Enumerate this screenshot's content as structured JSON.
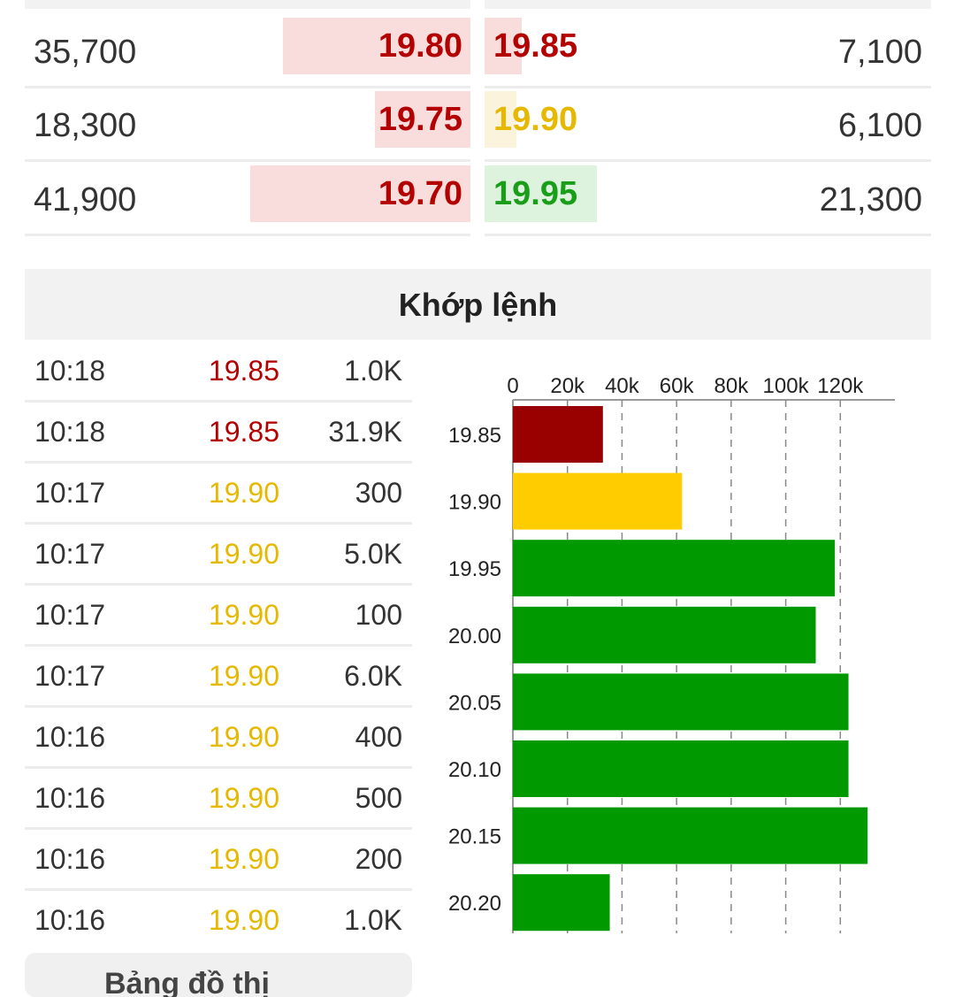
{
  "order_book": {
    "rows": [
      {
        "bid_vol": "35,700",
        "bid_price": "19.80",
        "bid_color": "#b30000",
        "bid_bg": "#f9dddd",
        "bid_share": 0.42,
        "ask_price": "19.85",
        "ask_color": "#b30000",
        "ask_bg": "#f9dddd",
        "ask_share": 0.084,
        "ask_vol": "7,100"
      },
      {
        "bid_vol": "18,300",
        "bid_price": "19.75",
        "bid_color": "#b30000",
        "bid_bg": "#f9dddd",
        "bid_share": 0.215,
        "ask_price": "19.90",
        "ask_color": "#e6b800",
        "ask_bg": "#fbf3dc",
        "ask_share": 0.072,
        "ask_vol": "6,100"
      },
      {
        "bid_vol": "41,900",
        "bid_price": "19.70",
        "bid_color": "#b30000",
        "bid_bg": "#f9dddd",
        "bid_share": 0.494,
        "ask_price": "19.95",
        "ask_color": "#1a9e1a",
        "ask_bg": "#ddf3dd",
        "ask_share": 0.251,
        "ask_vol": "21,300"
      }
    ]
  },
  "section_title": "Khớp lệnh",
  "trades": [
    {
      "time": "10:18",
      "price": "19.85",
      "volume": "1.0K",
      "color": "#b30000"
    },
    {
      "time": "10:18",
      "price": "19.85",
      "volume": "31.9K",
      "color": "#b30000"
    },
    {
      "time": "10:17",
      "price": "19.90",
      "volume": "300",
      "color": "#e6b800"
    },
    {
      "time": "10:17",
      "price": "19.90",
      "volume": "5.0K",
      "color": "#e6b800"
    },
    {
      "time": "10:17",
      "price": "19.90",
      "volume": "100",
      "color": "#e6b800"
    },
    {
      "time": "10:17",
      "price": "19.90",
      "volume": "6.0K",
      "color": "#e6b800"
    },
    {
      "time": "10:16",
      "price": "19.90",
      "volume": "400",
      "color": "#e6b800"
    },
    {
      "time": "10:16",
      "price": "19.90",
      "volume": "500",
      "color": "#e6b800"
    },
    {
      "time": "10:16",
      "price": "19.90",
      "volume": "200",
      "color": "#e6b800"
    },
    {
      "time": "10:16",
      "price": "19.90",
      "volume": "1.0K",
      "color": "#e6b800"
    }
  ],
  "chart_data": {
    "type": "bar",
    "orientation": "horizontal",
    "categories": [
      "19.85",
      "19.90",
      "19.95",
      "20.00",
      "20.05",
      "20.10",
      "20.15",
      "20.20"
    ],
    "values": [
      33000,
      62000,
      118000,
      111000,
      123000,
      123000,
      130000,
      35500
    ],
    "colors": [
      "#990000",
      "#ffcc00",
      "#009900",
      "#009900",
      "#009900",
      "#009900",
      "#009900",
      "#009900"
    ],
    "xticks": [
      0,
      20000,
      40000,
      60000,
      80000,
      100000,
      120000
    ],
    "xtick_labels": [
      "0",
      "20k",
      "40k",
      "60k",
      "80k",
      "100k",
      "120k"
    ],
    "xlim": [
      0,
      140000
    ],
    "axis_position": "top",
    "grid": "vertical dashed"
  },
  "bottom_button": {
    "label": "Bảng đồ thị",
    "icon": "list-icon"
  }
}
